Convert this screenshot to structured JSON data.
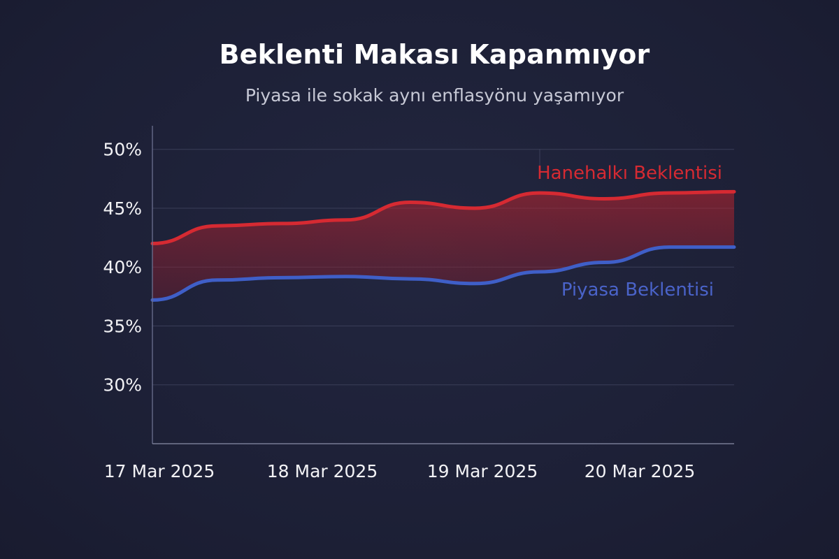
{
  "chart_data": {
    "type": "line",
    "title": "Beklenti Makası Kapanmıyor",
    "subtitle": "Piyasa ile sokak aynı enflasyönu yaşamıyor",
    "xlabel": "",
    "ylabel": "",
    "x": [
      0,
      0.42,
      0.84,
      1.25,
      1.67,
      2.09,
      2.51,
      2.93,
      3.35,
      3.77
    ],
    "xticks": [
      {
        "value": 0,
        "label": "17 Mar 2025"
      },
      {
        "value": 1,
        "label": "18 Mar 2025"
      },
      {
        "value": 2,
        "label": "19 Mar 2025"
      },
      {
        "value": 3,
        "label": "20 Mar 2025"
      }
    ],
    "xlim": [
      0,
      3.77
    ],
    "yticks": [
      {
        "value": 30,
        "label": "30%"
      },
      {
        "value": 35,
        "label": "35%"
      },
      {
        "value": 40,
        "label": "40%"
      },
      {
        "value": 45,
        "label": "45%"
      },
      {
        "value": 50,
        "label": "50%"
      }
    ],
    "ylim": [
      25,
      52
    ],
    "grid": true,
    "fill_between_series": true,
    "series": [
      {
        "name": "Hanehalkı Beklentisi",
        "color": "#d62a32",
        "values": [
          42.0,
          43.5,
          43.7,
          44.0,
          45.5,
          45.0,
          46.3,
          45.8,
          46.3,
          46.4
        ]
      },
      {
        "name": "Piyasa Beklentisi",
        "color": "#3f5fc8",
        "values": [
          37.2,
          38.9,
          39.1,
          39.2,
          39.0,
          38.6,
          39.6,
          40.4,
          41.7,
          41.7
        ]
      }
    ],
    "series_labels": [
      {
        "text": "Hanehalkı Beklentisi",
        "color": "#d62a32"
      },
      {
        "text": "Piyasa Beklentisi",
        "color": "#4a63c9"
      }
    ]
  }
}
